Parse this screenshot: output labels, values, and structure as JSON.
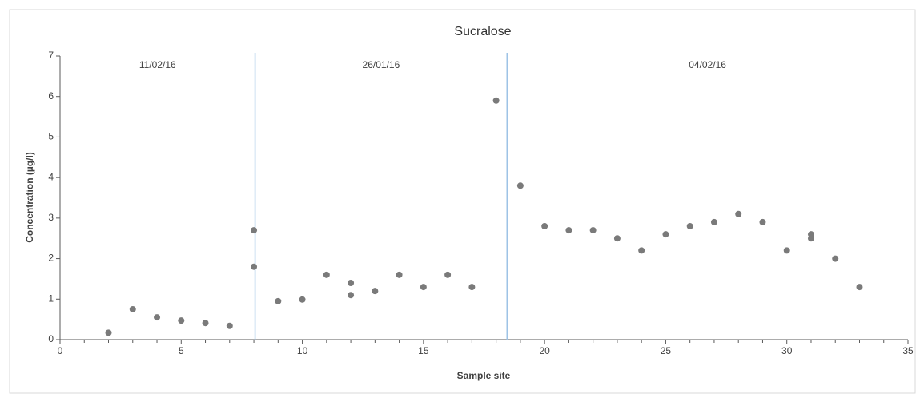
{
  "chart_data": {
    "type": "scatter",
    "title": "Sucralose",
    "x_label": "Sample site",
    "y_label": "Concentration (µg/l)",
    "x": [
      2,
      3,
      4,
      5,
      6,
      7,
      8,
      8,
      9,
      10,
      11,
      12,
      12,
      13,
      14,
      15,
      16,
      17,
      18,
      19,
      20,
      21,
      22,
      23,
      24,
      25,
      26,
      27,
      28,
      29,
      30,
      31,
      31,
      32,
      33
    ],
    "values": [
      0.17,
      0.75,
      0.55,
      0.47,
      0.41,
      0.34,
      2.7,
      1.8,
      0.95,
      0.99,
      1.6,
      1.4,
      1.1,
      1.2,
      1.6,
      1.3,
      1.6,
      1.3,
      5.9,
      3.8,
      2.8,
      2.7,
      2.7,
      2.5,
      2.2,
      2.6,
      2.8,
      2.9,
      3.1,
      2.9,
      2.2,
      2.6,
      2.5,
      2.0,
      1.3
    ],
    "color": "#7a7a7a",
    "dividers": [
      8.05,
      18.45
    ],
    "divider_color": "#9dc3e6",
    "annotations": [
      "11/02/16",
      "26/01/16",
      "04/02/16"
    ],
    "xlim": [
      0,
      35
    ],
    "xticks": [
      0,
      5,
      10,
      15,
      20,
      25,
      30,
      35
    ],
    "xminorticks": [
      1,
      2,
      3,
      4,
      6,
      7,
      8,
      9,
      11,
      12,
      13,
      14,
      16,
      17,
      18,
      19,
      21,
      22,
      23,
      24,
      26,
      27,
      28,
      29,
      31,
      32,
      33,
      34
    ],
    "ylim": [
      0,
      7
    ],
    "yticks": [
      0,
      1,
      2,
      3,
      4,
      5,
      6,
      7
    ],
    "grid": false
  }
}
